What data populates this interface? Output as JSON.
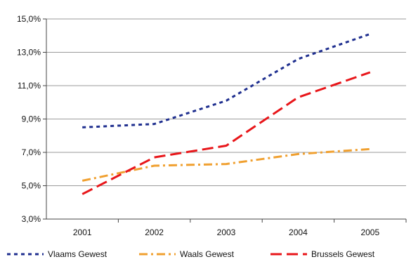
{
  "chart_data": {
    "type": "line",
    "title": "",
    "xlabel": "",
    "ylabel": "",
    "categories": [
      "2001",
      "2002",
      "2003",
      "2004",
      "2005"
    ],
    "y_ticks": [
      "3,0%",
      "5,0%",
      "7,0%",
      "9,0%",
      "11,0%",
      "13,0%",
      "15,0%"
    ],
    "y_tick_values": [
      3,
      5,
      7,
      9,
      11,
      13,
      15
    ],
    "ylim": [
      3,
      15
    ],
    "grid": "horizontal",
    "legend_position": "bottom",
    "series": [
      {
        "name": "Vlaams Gewest",
        "values": [
          8.5,
          8.7,
          10.1,
          12.6,
          14.1
        ],
        "color": "#1f2f8f",
        "style": "dotted"
      },
      {
        "name": "Waals Gewest",
        "values": [
          5.3,
          6.2,
          6.3,
          6.9,
          7.2
        ],
        "color": "#f0a030",
        "style": "dash-dot"
      },
      {
        "name": "Brussels Gewest",
        "values": [
          4.5,
          6.7,
          7.4,
          10.3,
          11.8
        ],
        "color": "#e8161a",
        "style": "dashed"
      }
    ]
  }
}
